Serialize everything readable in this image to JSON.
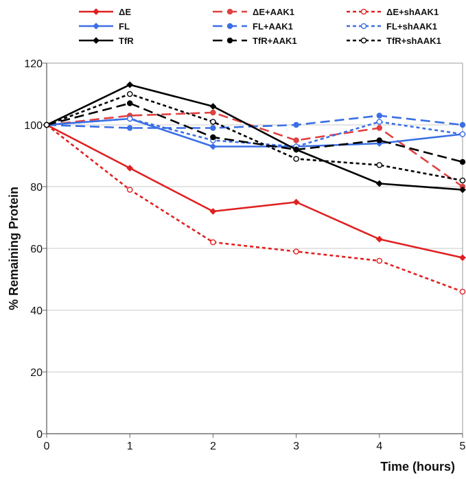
{
  "chart_data": {
    "type": "line",
    "xlabel": "Time (hours)",
    "ylabel": "% Remaining Protein",
    "xlim": [
      0,
      5
    ],
    "ylim": [
      0,
      120
    ],
    "x_ticks": [
      "0",
      "1",
      "2",
      "3",
      "4",
      "5"
    ],
    "y_ticks": [
      "0",
      "20",
      "40",
      "60",
      "80",
      "100",
      "120"
    ],
    "grid": "horizontal",
    "legend_position": "top",
    "x": [
      0,
      1,
      2,
      3,
      4,
      5
    ],
    "series": [
      {
        "name": "ΔE",
        "color": "#e02020",
        "dash": "solid",
        "marker": "diamond-filled",
        "values": [
          100,
          86,
          72,
          75,
          63,
          57
        ]
      },
      {
        "name": "ΔE+AAK1",
        "color": "#e04040",
        "dash": "long-dash",
        "marker": "circle-filled",
        "values": [
          100,
          103,
          104,
          95,
          99,
          80
        ]
      },
      {
        "name": "ΔE+shAAK1",
        "color": "#e02020",
        "dash": "short-dash",
        "marker": "circle-open",
        "values": [
          100,
          79,
          62,
          59,
          56,
          46
        ]
      },
      {
        "name": "FL",
        "color": "#3a6fe6",
        "dash": "solid",
        "marker": "diamond-filled",
        "values": [
          100,
          102,
          93,
          93,
          94,
          97
        ]
      },
      {
        "name": "FL+AAK1",
        "color": "#3a6fe6",
        "dash": "long-dash",
        "marker": "circle-filled",
        "values": [
          100,
          99,
          99,
          100,
          103,
          100
        ]
      },
      {
        "name": "FL+shAAK1",
        "color": "#3a6fe6",
        "dash": "short-dash",
        "marker": "circle-open",
        "values": [
          100,
          102,
          95,
          93,
          101,
          97
        ]
      },
      {
        "name": "TfR",
        "color": "#000000",
        "dash": "solid",
        "marker": "diamond-filled",
        "values": [
          100,
          113,
          106,
          92,
          81,
          79
        ]
      },
      {
        "name": "TfR+AAK1",
        "color": "#000000",
        "dash": "long-dash",
        "marker": "circle-filled",
        "values": [
          100,
          107,
          96,
          92,
          95,
          88
        ]
      },
      {
        "name": "TfR+shAAK1",
        "color": "#000000",
        "dash": "short-dash",
        "marker": "circle-open",
        "values": [
          100,
          110,
          101,
          89,
          87,
          82
        ]
      }
    ]
  }
}
